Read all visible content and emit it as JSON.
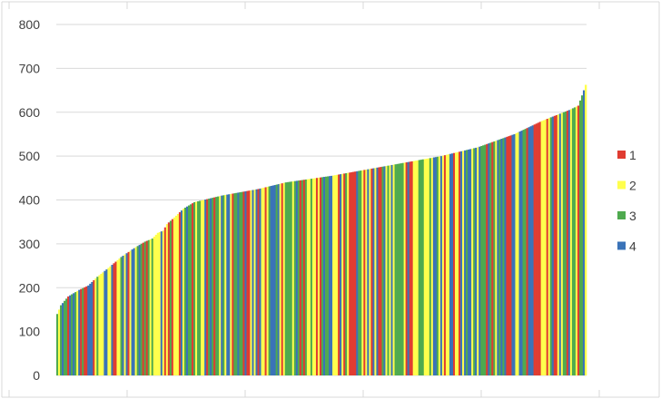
{
  "chart_data": {
    "type": "bar",
    "title": "",
    "xlabel": "",
    "ylabel": "",
    "ylim": [
      0,
      800
    ],
    "y_ticks": [
      0,
      100,
      200,
      300,
      400,
      500,
      600,
      700,
      800
    ],
    "y_tick_labels": [
      "0",
      "100",
      "200",
      "300",
      "400",
      "500",
      "600",
      "700",
      "800"
    ],
    "grid": true,
    "legend_position": "right",
    "n_bars": 290,
    "series": [
      {
        "name": "1",
        "color": "#e03c31"
      },
      {
        "name": "2",
        "color": "#ffff4d"
      },
      {
        "name": "3",
        "color": "#4faa4f"
      },
      {
        "name": "4",
        "color": "#3a73b8"
      }
    ],
    "sorted_value_profile": {
      "description_points": [
        [
          0,
          140
        ],
        [
          2,
          160
        ],
        [
          6,
          180
        ],
        [
          12,
          195
        ],
        [
          17,
          205
        ],
        [
          22,
          225
        ],
        [
          28,
          245
        ],
        [
          35,
          270
        ],
        [
          42,
          290
        ],
        [
          48,
          305
        ],
        [
          52,
          312
        ],
        [
          55,
          325
        ],
        [
          58,
          330
        ],
        [
          60,
          345
        ],
        [
          64,
          360
        ],
        [
          69,
          380
        ],
        [
          75,
          395
        ],
        [
          90,
          410
        ],
        [
          110,
          425
        ],
        [
          125,
          440
        ],
        [
          150,
          455
        ],
        [
          170,
          470
        ],
        [
          190,
          485
        ],
        [
          210,
          500
        ],
        [
          230,
          520
        ],
        [
          250,
          550
        ],
        [
          265,
          580
        ],
        [
          280,
          605
        ],
        [
          285,
          615
        ],
        [
          288,
          650
        ],
        [
          290,
          675
        ]
      ]
    }
  }
}
